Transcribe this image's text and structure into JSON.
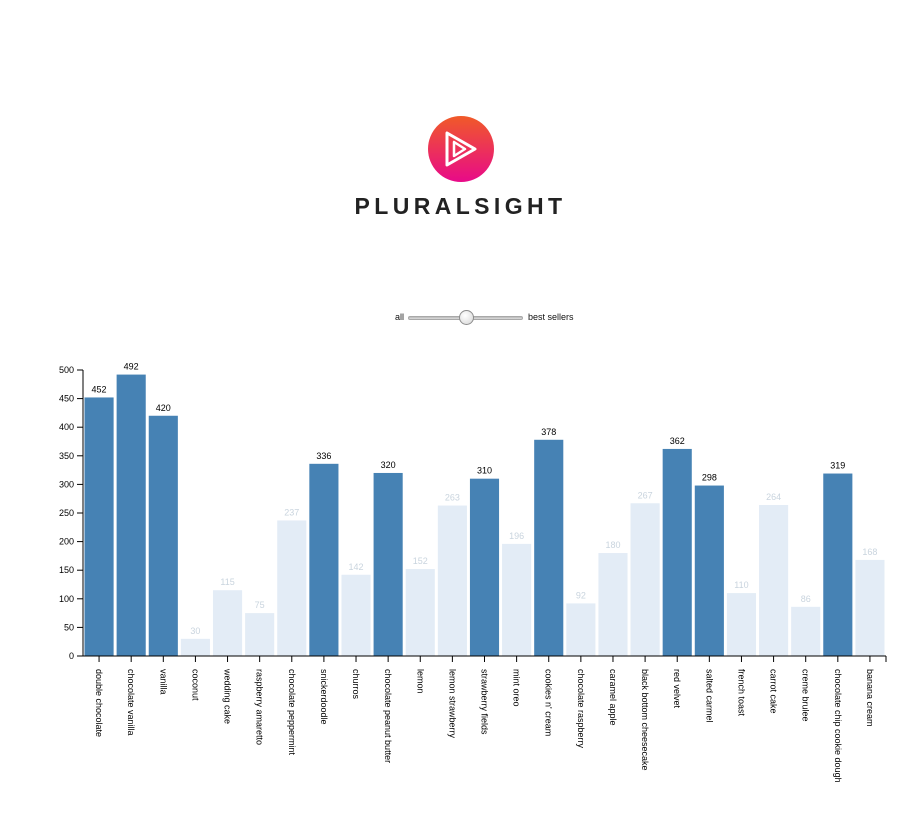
{
  "brand": {
    "name": "PLURALSIGHT",
    "icon": "play-triangle-icon",
    "gradient": [
      "#f05a28",
      "#e80a89"
    ]
  },
  "filter": {
    "left_label": "all",
    "right_label": "best sellers",
    "position": 0.5
  },
  "colors": {
    "highlight": "#4682b4",
    "dimmed": "#e3ecf6",
    "dimmed_label": "#c9d4de",
    "axis": "#000000"
  },
  "chart_data": {
    "type": "bar",
    "categories": [
      "double chocolate",
      "chocolate vanilla",
      "vanilla",
      "coconut",
      "wedding cake",
      "raspberry amaretto",
      "chocolate peppermint",
      "snickerdoodle",
      "churros",
      "chocolate peanut butter",
      "lemon",
      "lemon strawberry",
      "strawberry fields",
      "mint oreo",
      "cookies n' cream",
      "chocolate raspberry",
      "caramel apple",
      "black bottom cheesecake",
      "red velvet",
      "salted carmel",
      "french toast",
      "carrot cake",
      "creme brulee",
      "chocolate chip cookie dough",
      "banana cream"
    ],
    "values": [
      452,
      492,
      420,
      30,
      115,
      75,
      237,
      336,
      142,
      320,
      152,
      263,
      310,
      196,
      378,
      92,
      180,
      267,
      362,
      298,
      110,
      264,
      86,
      319,
      168
    ],
    "highlighted": [
      true,
      true,
      true,
      false,
      false,
      false,
      false,
      true,
      false,
      true,
      false,
      false,
      true,
      false,
      true,
      false,
      false,
      false,
      true,
      true,
      false,
      false,
      false,
      true,
      false
    ],
    "ylim": [
      0,
      500
    ],
    "yticks": [
      0,
      50,
      100,
      150,
      200,
      250,
      300,
      350,
      400,
      450,
      500
    ],
    "title": "",
    "xlabel": "",
    "ylabel": ""
  }
}
